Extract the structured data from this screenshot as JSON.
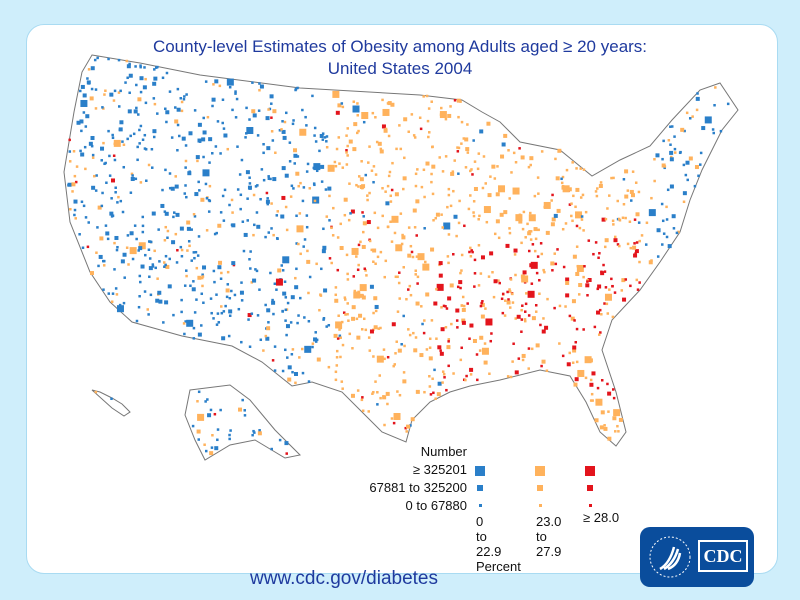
{
  "title": {
    "line1": "County-level Estimates of Obesity among Adults aged ≥ 20 years:",
    "line2": "United States 2004"
  },
  "legend": {
    "header": "Number",
    "sizes": [
      "≥ 325201",
      "67881 to 325200",
      "0 to 67880"
    ],
    "percent_classes": [
      {
        "label": [
          "0",
          "to",
          "22.9"
        ],
        "color": "#2a7fc9"
      },
      {
        "label": [
          "23.0",
          "to",
          "27.9"
        ],
        "color": "#ffb25c"
      },
      {
        "label": [
          "≥ 28.0"
        ],
        "color": "#e3141c"
      }
    ],
    "percent_title": "Percent"
  },
  "footer": {
    "url": "www.cdc.gov/diabetes"
  },
  "logo": {
    "text": "CDC",
    "seal": "hhs-eagle-seal"
  },
  "colors": {
    "background": "#cfeefb",
    "title": "#1f3a9e",
    "low": "#2a7fc9",
    "mid": "#ffb25c",
    "high": "#e3141c"
  }
}
